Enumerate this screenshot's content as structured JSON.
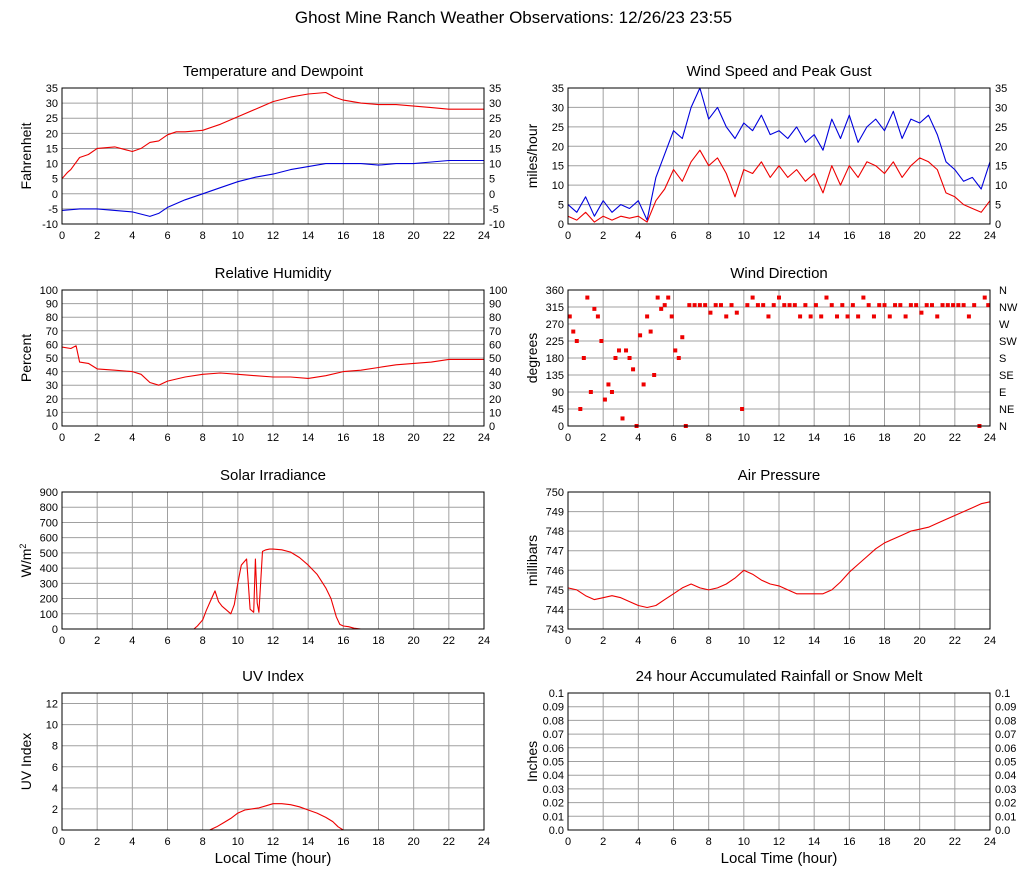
{
  "page": {
    "title": "Ghost Mine Ranch Weather Observations: 12/26/23 23:55"
  },
  "colors": {
    "red": "#ee0000",
    "blue": "#0000dd",
    "grid": "#a0a0a0",
    "axis": "#000000"
  },
  "chart_data": [
    {
      "id": "temperature",
      "type": "line",
      "title": "Temperature and Dewpoint",
      "xlabel": "",
      "ylabel": "Fahrenheit",
      "xlim": [
        0,
        24
      ],
      "ylim": [
        -10,
        35
      ],
      "xticks": [
        0,
        2,
        4,
        6,
        8,
        10,
        12,
        14,
        16,
        18,
        20,
        22,
        24
      ],
      "yticks": [
        -10,
        -5,
        0,
        5,
        10,
        15,
        20,
        25,
        30,
        35
      ],
      "right_axis": true,
      "series": [
        {
          "color": "red",
          "x": [
            0,
            0.3,
            0.5,
            1,
            1.5,
            2,
            3,
            4,
            4.5,
            5,
            5.5,
            6,
            6.5,
            7,
            8,
            9,
            10,
            11,
            12,
            13,
            14,
            15,
            15.5,
            16,
            17,
            18,
            19,
            20,
            21,
            22,
            23,
            24
          ],
          "y": [
            5,
            7,
            8,
            12,
            13,
            15,
            15.5,
            14,
            15,
            17,
            17.5,
            19.5,
            20.5,
            20.5,
            21,
            23,
            25.5,
            28,
            30.5,
            32,
            33,
            33.5,
            32,
            31,
            30,
            29.5,
            29.5,
            29,
            28.5,
            28,
            28,
            28
          ]
        },
        {
          "color": "blue",
          "x": [
            0,
            1,
            2,
            3,
            4,
            5,
            5.5,
            6,
            7,
            8,
            9,
            10,
            11,
            12,
            13,
            14,
            15,
            16,
            17,
            18,
            19,
            20,
            21,
            22,
            23,
            24
          ],
          "y": [
            -5.5,
            -5,
            -5,
            -5.5,
            -6,
            -7.5,
            -6.5,
            -4.5,
            -2,
            0,
            2,
            4,
            5.5,
            6.5,
            8,
            9,
            10,
            10,
            10,
            9.5,
            10,
            10,
            10.5,
            11,
            11,
            11
          ]
        }
      ]
    },
    {
      "id": "wind-speed",
      "type": "line",
      "title": "Wind Speed and Peak Gust",
      "xlabel": "",
      "ylabel": "miles/hour",
      "xlim": [
        0,
        24
      ],
      "ylim": [
        0,
        35
      ],
      "xticks": [
        0,
        2,
        4,
        6,
        8,
        10,
        12,
        14,
        16,
        18,
        20,
        22,
        24
      ],
      "yticks": [
        0,
        5,
        10,
        15,
        20,
        25,
        30,
        35
      ],
      "right_axis": true,
      "series": [
        {
          "color": "blue",
          "x": [
            0,
            0.5,
            1,
            1.5,
            2,
            2.5,
            3,
            3.5,
            4,
            4.5,
            5,
            5.5,
            6,
            6.5,
            7,
            7.5,
            8,
            8.5,
            9,
            9.5,
            10,
            10.5,
            11,
            11.5,
            12,
            12.5,
            13,
            13.5,
            14,
            14.5,
            15,
            15.5,
            16,
            16.5,
            17,
            17.5,
            18,
            18.5,
            19,
            19.5,
            20,
            20.5,
            21,
            21.5,
            22,
            22.5,
            23,
            23.5,
            24
          ],
          "y": [
            5,
            3,
            7,
            2,
            6,
            3,
            5,
            4,
            6,
            1,
            12,
            18,
            24,
            22,
            30,
            35,
            27,
            30,
            25,
            22,
            26,
            24,
            28,
            23,
            24,
            22,
            25,
            21,
            23,
            19,
            27,
            22,
            28,
            21,
            25,
            27,
            24,
            29,
            22,
            27,
            26,
            28,
            23,
            16,
            14,
            11,
            12,
            9,
            16
          ]
        },
        {
          "color": "red",
          "x": [
            0,
            0.5,
            1,
            1.5,
            2,
            2.5,
            3,
            3.5,
            4,
            4.5,
            5,
            5.5,
            6,
            6.5,
            7,
            7.5,
            8,
            8.5,
            9,
            9.5,
            10,
            10.5,
            11,
            11.5,
            12,
            12.5,
            13,
            13.5,
            14,
            14.5,
            15,
            15.5,
            16,
            16.5,
            17,
            17.5,
            18,
            18.5,
            19,
            19.5,
            20,
            20.5,
            21,
            21.5,
            22,
            22.5,
            23,
            23.5,
            24
          ],
          "y": [
            2,
            1,
            3,
            0.5,
            2,
            1,
            2,
            1.5,
            2,
            0.5,
            6,
            9,
            14,
            11,
            16,
            19,
            15,
            17,
            13,
            7,
            14,
            13,
            16,
            12,
            15,
            12,
            14,
            11,
            13,
            8,
            15,
            10,
            15,
            12,
            16,
            15,
            13,
            16,
            12,
            15,
            17,
            16,
            14,
            8,
            7,
            5,
            4,
            3,
            6
          ]
        }
      ]
    },
    {
      "id": "humidity",
      "type": "line",
      "title": "Relative Humidity",
      "xlabel": "",
      "ylabel": "Percent",
      "xlim": [
        0,
        24
      ],
      "ylim": [
        0,
        100
      ],
      "xticks": [
        0,
        2,
        4,
        6,
        8,
        10,
        12,
        14,
        16,
        18,
        20,
        22,
        24
      ],
      "yticks": [
        0,
        10,
        20,
        30,
        40,
        50,
        60,
        70,
        80,
        90,
        100
      ],
      "right_axis": true,
      "series": [
        {
          "color": "red",
          "x": [
            0,
            0.5,
            0.8,
            1,
            1.5,
            2,
            3,
            4,
            4.5,
            5,
            5.5,
            6,
            7,
            8,
            9,
            10,
            11,
            12,
            13,
            14,
            15,
            16,
            17,
            18,
            19,
            20,
            21,
            22,
            23,
            24
          ],
          "y": [
            58,
            57,
            59,
            47,
            46,
            42,
            41,
            40,
            38,
            32,
            30,
            33,
            36,
            38,
            39,
            38,
            37,
            36,
            36,
            35,
            37,
            40,
            41,
            43,
            45,
            46,
            47,
            49,
            49,
            49
          ]
        }
      ]
    },
    {
      "id": "wind-direction",
      "type": "scatter",
      "title": "Wind Direction",
      "xlabel": "",
      "ylabel": "degrees",
      "xlim": [
        0,
        24
      ],
      "ylim": [
        0,
        360
      ],
      "xticks": [
        0,
        2,
        4,
        6,
        8,
        10,
        12,
        14,
        16,
        18,
        20,
        22,
        24
      ],
      "yticks": [
        0,
        45,
        90,
        135,
        180,
        225,
        270,
        315,
        360
      ],
      "right_labels": [
        "N",
        "NE",
        "E",
        "SE",
        "S",
        "SW",
        "W",
        "NW",
        "N"
      ],
      "series": [
        {
          "color": "red",
          "x": [
            0.1,
            0.3,
            0.5,
            0.7,
            0.9,
            1.1,
            1.3,
            1.5,
            1.7,
            1.9,
            2.1,
            2.3,
            2.5,
            2.7,
            2.9,
            3.1,
            3.3,
            3.5,
            3.7,
            3.9,
            4.1,
            4.3,
            4.5,
            4.7,
            4.9,
            5.1,
            5.3,
            5.5,
            5.7,
            5.9,
            6.1,
            6.3,
            6.5,
            6.7,
            6.9,
            7.2,
            7.5,
            7.8,
            8.1,
            8.4,
            8.7,
            9.0,
            9.3,
            9.6,
            9.9,
            10.2,
            10.5,
            10.8,
            11.1,
            11.4,
            11.7,
            12.0,
            12.3,
            12.6,
            12.9,
            13.2,
            13.5,
            13.8,
            14.1,
            14.4,
            14.7,
            15.0,
            15.3,
            15.6,
            15.9,
            16.2,
            16.5,
            16.8,
            17.1,
            17.4,
            17.7,
            18.0,
            18.3,
            18.6,
            18.9,
            19.2,
            19.5,
            19.8,
            20.1,
            20.4,
            20.7,
            21.0,
            21.3,
            21.6,
            21.9,
            22.2,
            22.5,
            22.8,
            23.1,
            23.4,
            23.7,
            23.9
          ],
          "y": [
            290,
            250,
            225,
            45,
            180,
            340,
            90,
            310,
            290,
            225,
            70,
            110,
            90,
            180,
            200,
            20,
            200,
            180,
            150,
            0,
            240,
            110,
            290,
            250,
            135,
            340,
            310,
            320,
            340,
            290,
            200,
            180,
            235,
            0,
            320,
            320,
            320,
            320,
            300,
            320,
            320,
            290,
            320,
            300,
            45,
            320,
            340,
            320,
            320,
            290,
            320,
            340,
            320,
            320,
            320,
            290,
            320,
            290,
            320,
            290,
            340,
            320,
            290,
            320,
            290,
            320,
            290,
            340,
            320,
            290,
            320,
            320,
            290,
            320,
            320,
            290,
            320,
            320,
            300,
            320,
            320,
            290,
            320,
            320,
            320,
            320,
            320,
            290,
            320,
            0,
            340,
            320
          ]
        }
      ]
    },
    {
      "id": "solar",
      "type": "area",
      "title": "Solar Irradiance",
      "xlabel": "",
      "ylabel": "W/m2",
      "xlim": [
        0,
        24
      ],
      "ylim": [
        0,
        900
      ],
      "xticks": [
        0,
        2,
        4,
        6,
        8,
        10,
        12,
        14,
        16,
        18,
        20,
        22,
        24
      ],
      "yticks": [
        0,
        100,
        200,
        300,
        400,
        500,
        600,
        700,
        800,
        900
      ],
      "right_axis": false,
      "series": [
        {
          "color": "red",
          "x": [
            0,
            7.5,
            7.7,
            8,
            8.2,
            8.5,
            8.7,
            8.9,
            9.1,
            9.3,
            9.6,
            9.8,
            10,
            10.2,
            10.5,
            10.7,
            10.9,
            11,
            11.1,
            11.2,
            11.4,
            11.6,
            11.8,
            12,
            12.5,
            13,
            13.5,
            14,
            14.5,
            15,
            15.3,
            15.6,
            15.8,
            16,
            16.3,
            16.6,
            17,
            18,
            24
          ],
          "y": [
            0,
            0,
            20,
            60,
            120,
            200,
            250,
            180,
            150,
            130,
            100,
            160,
            300,
            420,
            460,
            130,
            110,
            460,
            170,
            110,
            510,
            520,
            525,
            525,
            520,
            505,
            470,
            420,
            360,
            270,
            200,
            80,
            30,
            20,
            15,
            5,
            0,
            0,
            0
          ]
        }
      ]
    },
    {
      "id": "pressure",
      "type": "line",
      "title": "Air Pressure",
      "xlabel": "",
      "ylabel": "millibars",
      "xlim": [
        0,
        24
      ],
      "ylim": [
        743,
        750
      ],
      "xticks": [
        0,
        2,
        4,
        6,
        8,
        10,
        12,
        14,
        16,
        18,
        20,
        22,
        24
      ],
      "yticks": [
        743,
        744,
        745,
        746,
        747,
        748,
        749,
        750
      ],
      "right_axis": false,
      "series": [
        {
          "color": "red",
          "x": [
            0,
            0.5,
            1,
            1.5,
            2,
            2.5,
            3,
            3.5,
            4,
            4.5,
            5,
            5.5,
            6,
            6.5,
            7,
            7.5,
            8,
            8.5,
            9,
            9.5,
            10,
            10.5,
            11,
            11.5,
            12,
            12.5,
            13,
            13.5,
            14,
            14.5,
            15,
            15.5,
            16,
            16.5,
            17,
            17.5,
            18,
            18.5,
            19,
            19.5,
            20,
            20.5,
            21,
            21.5,
            22,
            22.5,
            23,
            23.5,
            24
          ],
          "y": [
            745.1,
            745.0,
            744.7,
            744.5,
            744.6,
            744.7,
            744.6,
            744.4,
            744.2,
            744.1,
            744.2,
            744.5,
            744.8,
            745.1,
            745.3,
            745.1,
            745.0,
            745.1,
            745.3,
            745.6,
            746.0,
            745.8,
            745.5,
            745.3,
            745.2,
            745.0,
            744.8,
            744.8,
            744.8,
            744.8,
            745.0,
            745.4,
            745.9,
            746.3,
            746.7,
            747.1,
            747.4,
            747.6,
            747.8,
            748.0,
            748.1,
            748.2,
            748.4,
            748.6,
            748.8,
            749.0,
            749.2,
            749.4,
            749.5
          ]
        }
      ]
    },
    {
      "id": "uv",
      "type": "area",
      "title": "UV Index",
      "xlabel": "Local Time (hour)",
      "ylabel": "UV Index",
      "xlim": [
        0,
        24
      ],
      "ylim": [
        0,
        13
      ],
      "xticks": [
        0,
        2,
        4,
        6,
        8,
        10,
        12,
        14,
        16,
        18,
        20,
        22,
        24
      ],
      "yticks": [
        0,
        2,
        4,
        6,
        8,
        10,
        12
      ],
      "right_axis": false,
      "series": [
        {
          "color": "red",
          "x": [
            0,
            8.4,
            8.8,
            9.2,
            9.6,
            10,
            10.4,
            10.8,
            11.2,
            11.6,
            12,
            12.5,
            13,
            13.5,
            14,
            14.5,
            15,
            15.4,
            15.7,
            16,
            24
          ],
          "y": [
            0,
            0,
            0.3,
            0.7,
            1.1,
            1.6,
            1.9,
            2.0,
            2.1,
            2.3,
            2.5,
            2.5,
            2.4,
            2.2,
            1.9,
            1.6,
            1.2,
            0.8,
            0.3,
            0,
            0
          ]
        }
      ]
    },
    {
      "id": "rainfall",
      "type": "line",
      "title": "24 hour Accumulated Rainfall or Snow Melt",
      "xlabel": "Local Time (hour)",
      "ylabel": "Inches",
      "xlim": [
        0,
        24
      ],
      "ylim": [
        0,
        0.1
      ],
      "xticks": [
        0,
        2,
        4,
        6,
        8,
        10,
        12,
        14,
        16,
        18,
        20,
        22,
        24
      ],
      "yticks": [
        0,
        0.01,
        0.02,
        0.03,
        0.04,
        0.05,
        0.06,
        0.07,
        0.08,
        0.09,
        0.1
      ],
      "yticklabels": [
        "0.0",
        "0.01",
        "0.02",
        "0.03",
        "0.04",
        "0.05",
        "0.06",
        "0.07",
        "0.08",
        "0.09",
        "0.1"
      ],
      "right_axis": true,
      "series": [
        {
          "color": "red",
          "x": [
            0,
            24
          ],
          "y": [
            0,
            0
          ]
        }
      ]
    }
  ]
}
